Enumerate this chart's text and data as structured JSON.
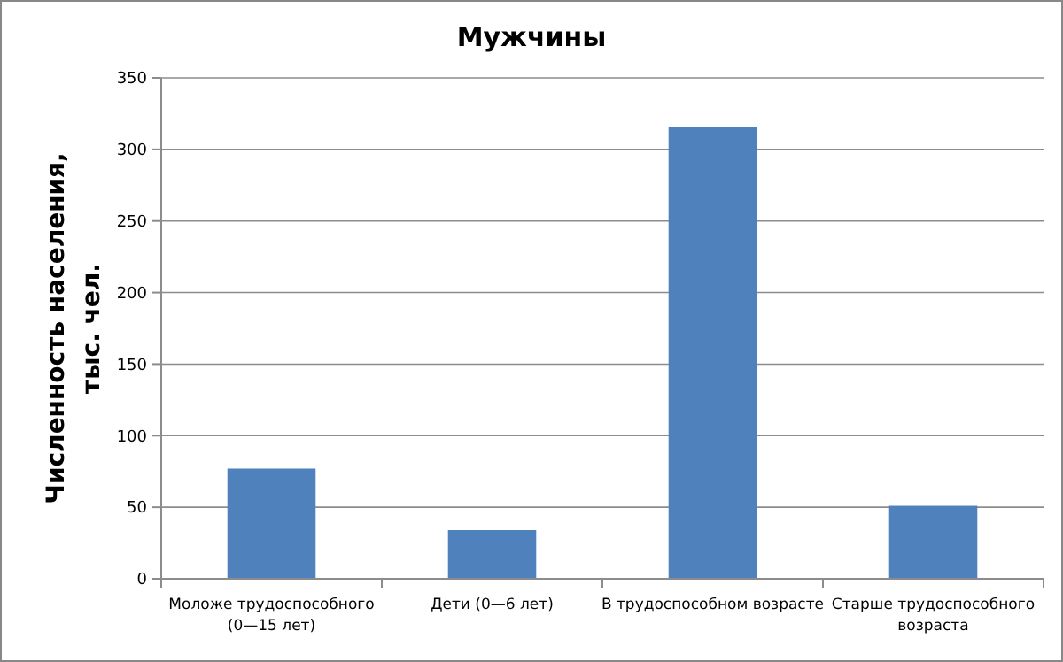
{
  "chart_data": {
    "type": "bar",
    "title": "Мужчины",
    "ylabel": "Численность населения, тыс. чел.",
    "categories": [
      "Моложе трудоспособного (0—15 лет)",
      "Дети (0—6 лет)",
      "В трудоспособном возрасте",
      "Старше трудоспособного возраста"
    ],
    "values": [
      77,
      34,
      316,
      51
    ],
    "color": "#4f81bd",
    "ylim": [
      0,
      350
    ],
    "yticks": [
      0,
      50,
      100,
      150,
      200,
      250,
      300,
      350
    ],
    "grid": "y"
  }
}
